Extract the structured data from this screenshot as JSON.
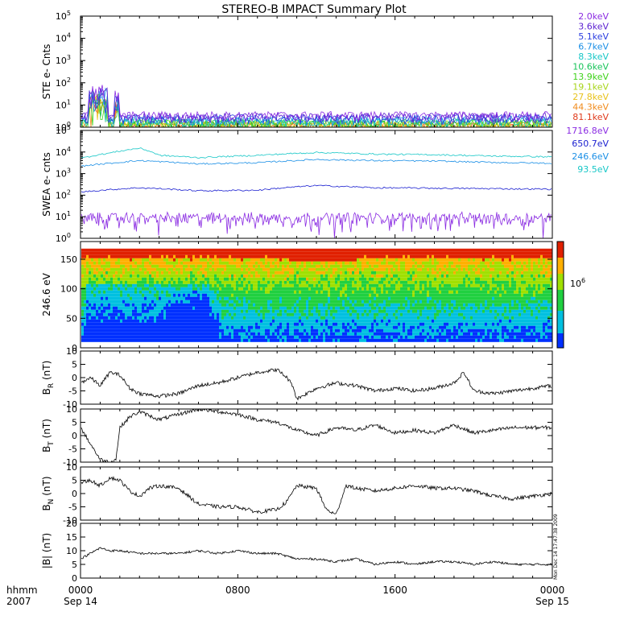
{
  "title": "STEREO-B IMPACT Summary Plot",
  "side_stamp": "Mon Dec 14 17:47:38 2009",
  "time_axis": {
    "label_line1": "hhmm",
    "label_line2": "2007",
    "ticks": [
      {
        "label": "0000",
        "hour": 0,
        "sub": "Sep 14"
      },
      {
        "label": "0800",
        "hour": 8,
        "sub": ""
      },
      {
        "label": "1600",
        "hour": 16,
        "sub": ""
      },
      {
        "label": "0000",
        "hour": 24,
        "sub": "Sep 15"
      }
    ],
    "xlim": [
      0,
      24
    ]
  },
  "legend_ste": [
    {
      "label": "2.0keV",
      "color": "#8a2be2"
    },
    {
      "label": "3.6keV",
      "color": "#5a1fd0"
    },
    {
      "label": "5.1keV",
      "color": "#2a3de0"
    },
    {
      "label": "6.7keV",
      "color": "#1a8fe6"
    },
    {
      "label": "8.3keV",
      "color": "#17c7c7"
    },
    {
      "label": "10.6keV",
      "color": "#19c45a"
    },
    {
      "label": "13.9keV",
      "color": "#3fd21a"
    },
    {
      "label": "19.1keV",
      "color": "#a8d51a"
    },
    {
      "label": "27.8keV",
      "color": "#e8c21a"
    },
    {
      "label": "44.3keV",
      "color": "#f08a1a"
    },
    {
      "label": "81.1keV",
      "color": "#e03a1a"
    }
  ],
  "legend_swea": [
    {
      "label": "1716.8eV",
      "color": "#8a2be2"
    },
    {
      "label": "650.7eV",
      "color": "#1a1fd0"
    },
    {
      "label": "246.6eV",
      "color": "#1a8fe6"
    },
    {
      "label": "93.5eV",
      "color": "#17c7c7"
    }
  ],
  "chart_data": [
    {
      "type": "line",
      "ylabel": "STE e- Cnts",
      "yscale": "log",
      "ylim": [
        1,
        100000
      ],
      "ytick_exponents": [
        0,
        1,
        2,
        3,
        4,
        5
      ],
      "series_note": "11 energy channels, counts mostly 1-5 with early spike to ~50 near 0030-0130",
      "series_levels": [
        3,
        2.6,
        2.2,
        1.9,
        1.6,
        1.4,
        1.3,
        1.2,
        1.1,
        1.05,
        1.02
      ]
    },
    {
      "type": "line",
      "ylabel": "SWEA e- cnts",
      "yscale": "log",
      "ylim": [
        1,
        100000
      ],
      "ytick_exponents": [
        0,
        1,
        2,
        3,
        4,
        5
      ],
      "series": [
        {
          "name": "1716.8eV",
          "x": [
            0,
            24
          ],
          "y": [
            5,
            5
          ]
        },
        {
          "name": "650.7eV",
          "x": [
            0,
            1.5,
            3,
            6,
            9,
            12,
            15,
            18,
            21,
            24
          ],
          "y": [
            140,
            180,
            220,
            160,
            170,
            280,
            220,
            210,
            200,
            190
          ]
        },
        {
          "name": "246.6eV",
          "x": [
            0,
            1.5,
            3,
            6,
            9,
            12,
            15,
            18,
            21,
            24
          ],
          "y": [
            2200,
            3000,
            4000,
            2800,
            3200,
            4500,
            4000,
            3800,
            3300,
            3000
          ]
        },
        {
          "name": "93.5eV",
          "x": [
            0,
            1.5,
            3,
            4,
            6,
            9,
            12,
            15,
            18,
            21,
            24
          ],
          "y": [
            5000,
            9000,
            15000,
            7000,
            5500,
            7000,
            9500,
            8000,
            7500,
            6500,
            6000
          ]
        }
      ]
    },
    {
      "type": "heatmap",
      "ylabel": "246.6 eV",
      "ylim": [
        0,
        180
      ],
      "yticks": [
        0,
        50,
        100,
        150
      ],
      "colorbar_label": "10",
      "colorbar_exp": "6"
    },
    {
      "type": "line",
      "ylabel": "B",
      "ysub": "R",
      "yunit": " (nT)",
      "ylim": [
        -10,
        10
      ],
      "yticks": [
        -10,
        -5,
        0,
        5,
        10
      ],
      "x": [
        0,
        0.5,
        1,
        1.5,
        2,
        2.5,
        3,
        4,
        5,
        6,
        7,
        8,
        9,
        10,
        10.5,
        10.8,
        11,
        12,
        13,
        14,
        15,
        16,
        17,
        18,
        19,
        19.5,
        20,
        21,
        22,
        23,
        24
      ],
      "y": [
        -2,
        0,
        -3,
        2,
        1,
        -4,
        -6,
        -7,
        -6,
        -3,
        -2,
        0,
        2,
        3,
        0,
        -3,
        -8,
        -4,
        -2,
        -3,
        -5,
        -4,
        -5,
        -4,
        -2,
        2,
        -5,
        -6,
        -5,
        -4,
        -3
      ]
    },
    {
      "type": "line",
      "ylabel": "B",
      "ysub": "T",
      "yunit": " (nT)",
      "ylim": [
        -10,
        10
      ],
      "yticks": [
        -10,
        -5,
        0,
        5,
        10
      ],
      "x": [
        0,
        0.5,
        1,
        1.5,
        1.8,
        2,
        2.5,
        3,
        4,
        5,
        6,
        7,
        8,
        9,
        10,
        11,
        12,
        13,
        14,
        15,
        16,
        17,
        18,
        19,
        20,
        21,
        22,
        23,
        24
      ],
      "y": [
        3,
        -3,
        -9,
        -10,
        -9,
        3,
        7,
        9,
        6,
        8,
        10,
        9,
        8,
        6,
        5,
        2,
        0,
        3,
        2,
        4,
        1,
        2,
        1,
        4,
        1,
        2,
        3,
        3,
        3
      ]
    },
    {
      "type": "line",
      "ylabel": "B",
      "ysub": "N",
      "yunit": " (nT)",
      "ylim": [
        -10,
        10
      ],
      "yticks": [
        -10,
        -5,
        0,
        5,
        10
      ],
      "x": [
        0,
        0.5,
        1,
        1.5,
        2,
        2.5,
        3,
        3.5,
        4,
        5,
        6,
        7,
        8,
        9,
        10,
        10.5,
        11,
        12,
        12.5,
        13,
        13.5,
        14,
        15,
        16,
        17,
        18,
        19,
        20,
        21,
        22,
        23,
        24
      ],
      "y": [
        4,
        5,
        3,
        6,
        5,
        1,
        -1,
        2,
        3,
        2,
        -4,
        -5,
        -5,
        -7,
        -6,
        -3,
        3,
        2,
        -6,
        -8,
        3,
        2,
        1,
        2,
        3,
        2,
        2,
        1,
        -1,
        -2,
        -1,
        0
      ]
    },
    {
      "type": "line",
      "ylabel": "|B|",
      "yunit": " (nT)",
      "ylim": [
        0,
        20
      ],
      "yticks": [
        0,
        5,
        10,
        15,
        20
      ],
      "x": [
        0,
        0.5,
        1,
        1.5,
        2,
        3,
        4,
        5,
        6,
        7,
        8,
        9,
        10,
        11,
        12,
        13,
        14,
        15,
        16,
        17,
        18,
        19,
        20,
        21,
        22,
        23,
        24
      ],
      "y": [
        7,
        9,
        11,
        10,
        10,
        9,
        9,
        9,
        10,
        9,
        10,
        9,
        9,
        7,
        7,
        6,
        7,
        5,
        6,
        5,
        6,
        6,
        5,
        6,
        5,
        5,
        5
      ]
    }
  ]
}
